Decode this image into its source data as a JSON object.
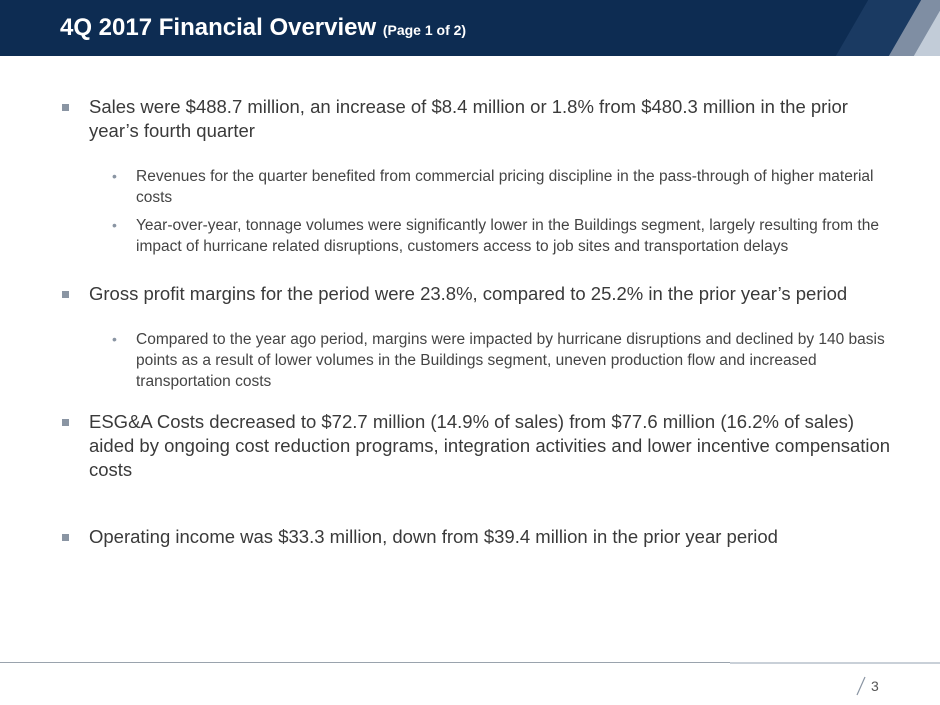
{
  "header": {
    "title": "4Q 2017 Financial Overview",
    "subtitle": "(Page 1 of 2)"
  },
  "bullets": [
    {
      "text": "Sales were $488.7 million, an increase of $8.4 million or 1.8% from $480.3 million in the prior year’s fourth quarter",
      "subs": [
        "Revenues for the quarter benefited from commercial pricing discipline in the pass-through of higher material costs",
        "Year-over-year, tonnage volumes were significantly lower in the Buildings segment, largely resulting from the impact of hurricane related disruptions, customers access to job sites and transportation delays"
      ]
    },
    {
      "text": "Gross profit margins for the period were 23.8%, compared to 25.2% in the prior year’s period",
      "subs": [
        "Compared to the year ago period, margins were impacted by hurricane disruptions and declined by 140 basis points as a result of lower volumes in the Buildings segment, uneven production flow and increased transportation costs"
      ]
    },
    {
      "text": "ESG&A Costs decreased to $72.7 million (14.9% of sales) from $77.6 million (16.2% of sales) aided by ongoing cost reduction programs, integration activities and lower incentive compensation costs",
      "subs": []
    },
    {
      "text": "Operating income was $33.3 million, down from $39.4 million in the prior year period",
      "subs": []
    }
  ],
  "footer": {
    "page_number": "3"
  },
  "colors": {
    "header_bg": "#0d2c52",
    "bullet_marker": "#8a95a3",
    "text": "#333333"
  }
}
